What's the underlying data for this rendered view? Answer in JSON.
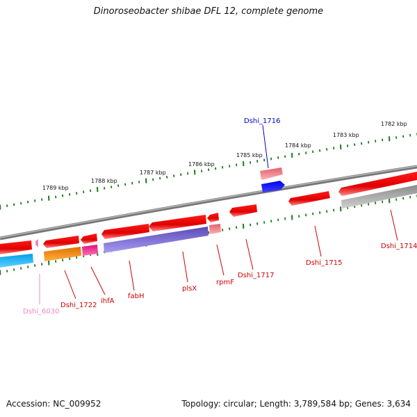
{
  "title": "Dinoroseobacter shibae DFL 12, complete genome",
  "accession": "Accession: NC_009952",
  "summary": "Topology: circular; Length: 3,789,584 bp; Genes: 3,634",
  "colors": {
    "backbone": "#7a7a7a",
    "tick": "#1a7a1a",
    "forward_gene": "#ee0000",
    "label_red": "#cc0000",
    "label_blue": "#0000cc",
    "label_pink": "#ee88bb"
  },
  "kbp_ticks": [
    {
      "label": "1789 kbp"
    },
    {
      "label": "1788 kbp"
    },
    {
      "label": "1787 kbp"
    },
    {
      "label": "1786 kbp"
    },
    {
      "label": "1785 kbp"
    },
    {
      "label": "1784 kbp"
    },
    {
      "label": "1783 kbp"
    },
    {
      "label": "1782 kbp"
    }
  ],
  "gene_labels": [
    {
      "text": "Dshi_1716",
      "color": "#0000cc"
    },
    {
      "text": "Dshi_1714",
      "color": "#cc0000"
    },
    {
      "text": "Dshi_1715",
      "color": "#cc0000"
    },
    {
      "text": "Dshi_1717",
      "color": "#cc0000"
    },
    {
      "text": "rpmF",
      "color": "#cc0000"
    },
    {
      "text": "plsX",
      "color": "#cc0000"
    },
    {
      "text": "fabH",
      "color": "#cc0000"
    },
    {
      "text": "ihfA",
      "color": "#cc0000"
    },
    {
      "text": "Dshi_1722",
      "color": "#cc0000"
    },
    {
      "text": "Dshi_6030",
      "color": "#ee88bb"
    }
  ]
}
